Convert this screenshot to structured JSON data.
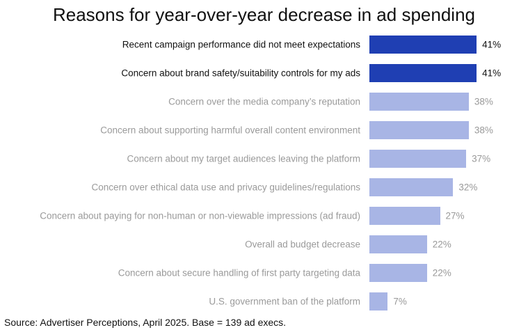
{
  "chart_data": {
    "type": "bar",
    "orientation": "horizontal",
    "title": "Reasons for year-over-year decrease in ad spending",
    "categories": [
      "Recent campaign performance did not meet expectations",
      "Concern about brand safety/suitability controls for my ads",
      "Concern over the media company’s reputation",
      "Concern about supporting harmful overall content environment",
      "Concern about my target audiences leaving the platform",
      "Concern over ethical data use and privacy guidelines/regulations",
      "Concern about paying for non-human or non-viewable impressions (ad fraud)",
      "Overall ad budget decrease",
      "Concern about secure handling of first party targeting data",
      "U.S. government ban of the platform"
    ],
    "values": [
      41,
      41,
      38,
      38,
      37,
      32,
      27,
      22,
      22,
      7
    ],
    "value_labels": [
      "41%",
      "41%",
      "38%",
      "38%",
      "37%",
      "32%",
      "27%",
      "22%",
      "22%",
      "7%"
    ],
    "colors": [
      "#1f3fb3",
      "#1f3fb3",
      "#a8b5e5",
      "#a8b5e5",
      "#a8b5e5",
      "#a8b5e5",
      "#a8b5e5",
      "#a8b5e5",
      "#a8b5e5",
      "#a8b5e5"
    ],
    "label_colors": [
      "#111111",
      "#111111",
      "#9a9a9a",
      "#9a9a9a",
      "#9a9a9a",
      "#9a9a9a",
      "#9a9a9a",
      "#9a9a9a",
      "#9a9a9a",
      "#9a9a9a"
    ],
    "source": "Source: Advertiser Perceptions, April 2025. Base = 139 ad execs."
  }
}
